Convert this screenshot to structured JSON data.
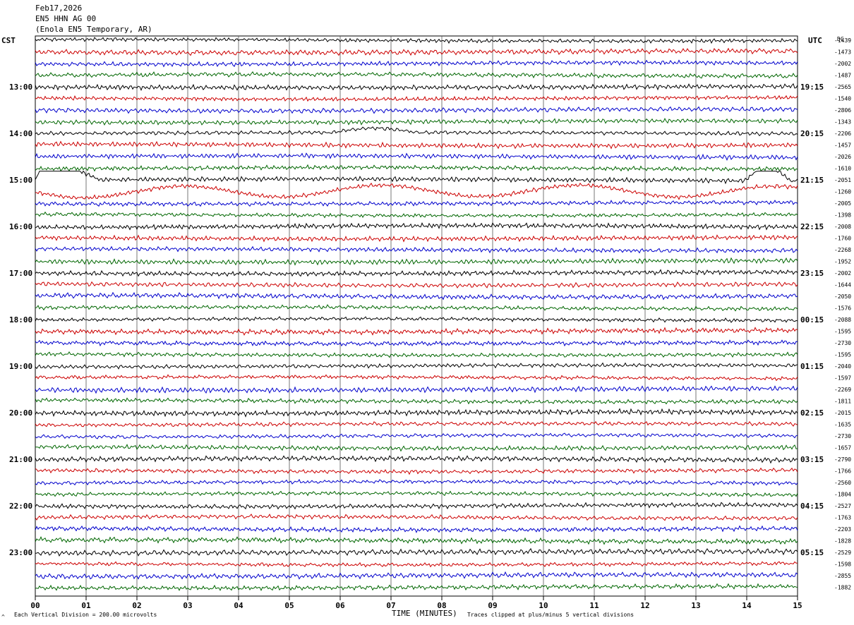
{
  "header": {
    "date": "Feb17,2026",
    "channel": "EN5 HHN AG 00",
    "location": "(Enola EN5 Temporary, AR)"
  },
  "left_axis_label": "CST",
  "right_axis_label": "UTC",
  "dc_label": "DC",
  "footer": {
    "scale_text": "Each Vertical Division =  200.00 microvolts",
    "clip_text": "Traces clipped at plus/minus 5 vertical divisions",
    "corner_mark": "^"
  },
  "colors": {
    "black": "#000000",
    "red": "#cc0000",
    "blue": "#0000cc",
    "green": "#006600"
  },
  "chart_data": {
    "type": "line",
    "xlabel": "TIME (MINUTES)",
    "xlim": [
      0,
      15
    ],
    "x_ticks": [
      "00",
      "01",
      "02",
      "03",
      "04",
      "05",
      "06",
      "07",
      "08",
      "09",
      "10",
      "11",
      "12",
      "13",
      "14",
      "15"
    ],
    "trace_minutes": 15,
    "trace_color_cycle": [
      "black",
      "red",
      "blue",
      "green"
    ],
    "hours_cst": [
      "13:00",
      "14:00",
      "15:00",
      "16:00",
      "17:00",
      "18:00",
      "19:00",
      "20:00",
      "21:00",
      "22:00",
      "23:00"
    ],
    "hours_utc": [
      "19:15",
      "20:15",
      "21:15",
      "22:15",
      "23:15",
      "00:15",
      "01:15",
      "02:15",
      "03:15",
      "04:15",
      "05:15"
    ],
    "dc_offsets": [
      "-1439",
      "-1473",
      "-2002",
      "-1487",
      "-2565",
      "-1540",
      "-2806",
      "-1343",
      "-2206",
      "-1457",
      "-2026",
      "-1610",
      "-2051",
      "-1260",
      "-2005",
      "-1398",
      "-2008",
      "-1760",
      "-2268",
      "-1952",
      "-2002",
      "-1644",
      "-2050",
      "-1576",
      "-2088",
      "-1595",
      "-2730",
      "-1595",
      "-2040",
      "-1597",
      "-2269",
      "-1811",
      "-2015",
      "-1635",
      "-2730",
      "-1657",
      "-2790",
      "-1766",
      "-2560",
      "-1804",
      "-2527",
      "-1763",
      "-2203",
      "-1828",
      "-2529",
      "-1598",
      "-2855",
      "-1882"
    ],
    "vertical_division_microvolts": 200.0,
    "clip_divisions": 5
  }
}
